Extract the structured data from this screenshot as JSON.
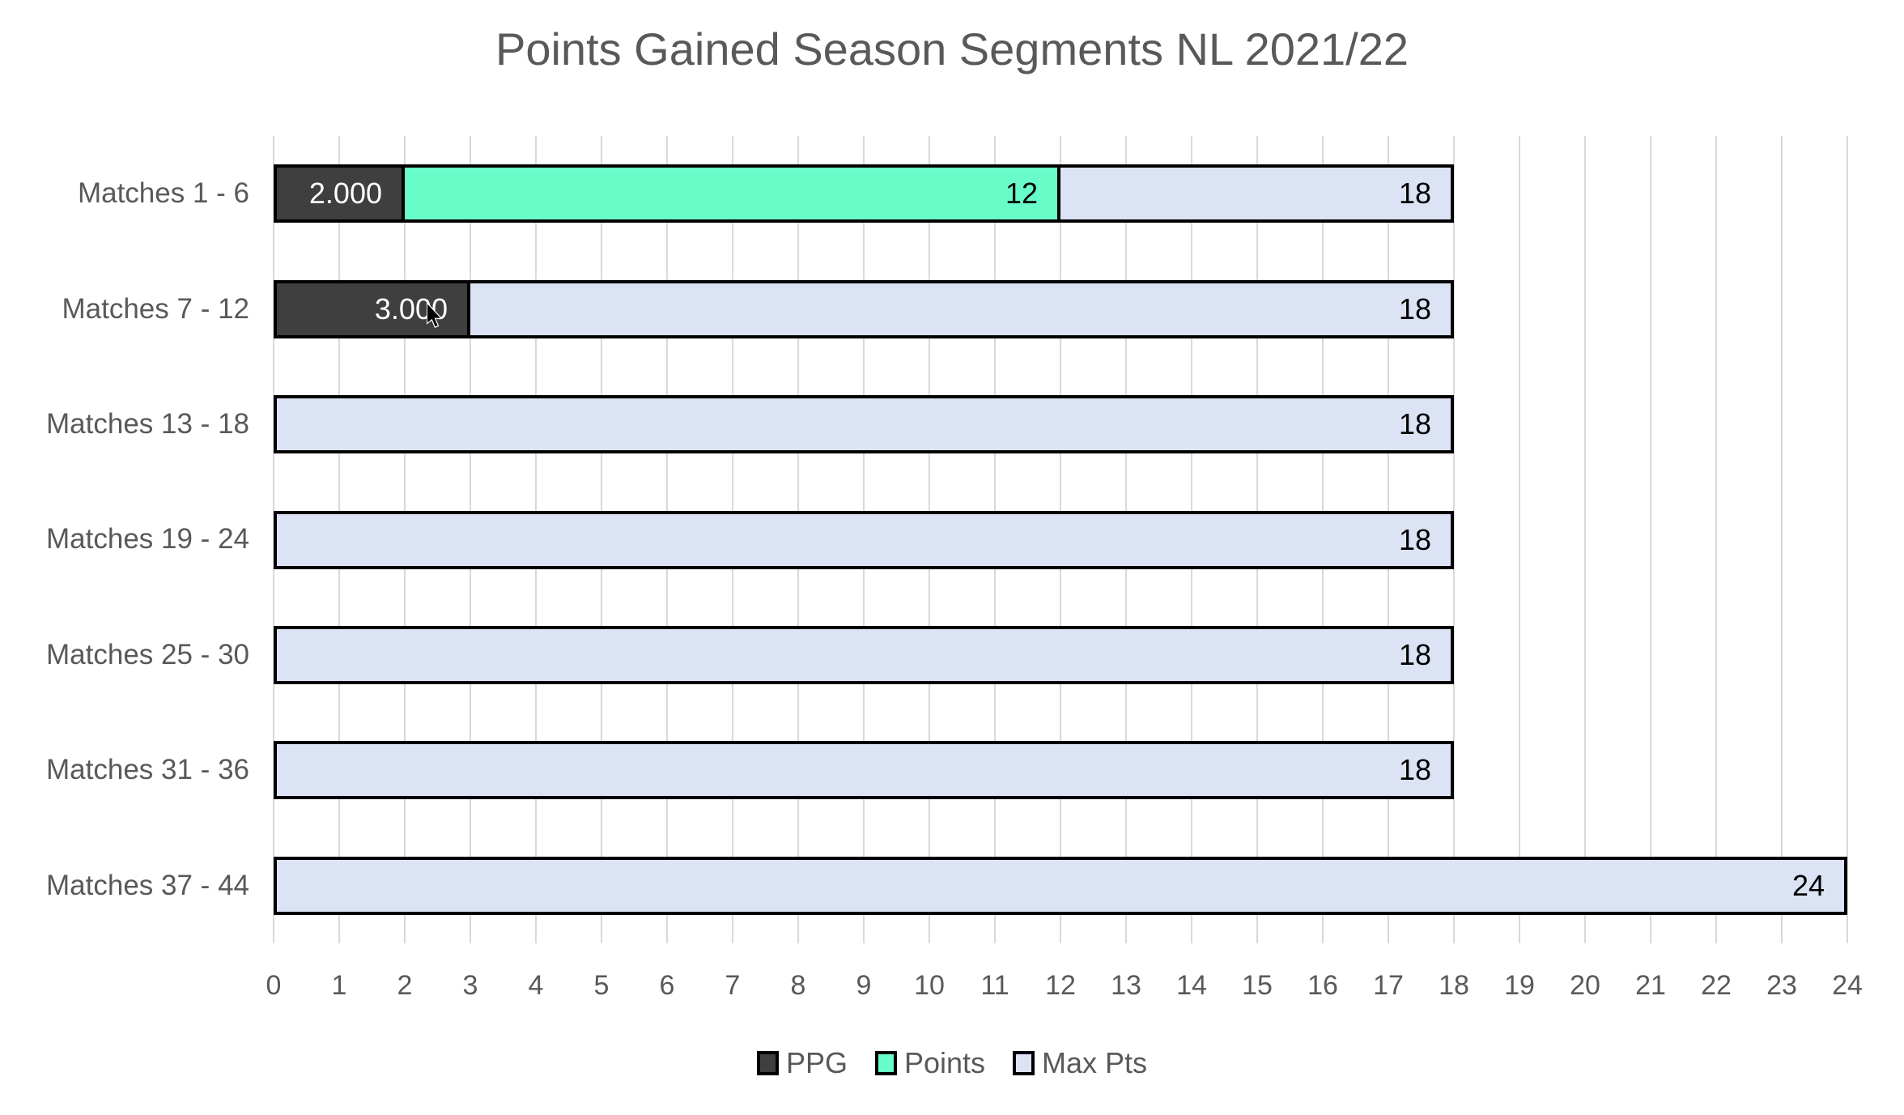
{
  "chart_data": {
    "type": "bar",
    "orientation": "horizontal",
    "title": "Points Gained Season Segments NL 2021/22",
    "categories": [
      "Matches 1 - 6",
      "Matches 7 - 12",
      "Matches 13 - 18",
      "Matches 19 - 24",
      "Matches 25 - 30",
      "Matches 31 - 36",
      "Matches 37 - 44"
    ],
    "series": [
      {
        "name": "PPG",
        "color": "#3f3f3f",
        "pattern": "dots",
        "label_color": "#ffffff",
        "values": [
          2,
          3,
          null,
          null,
          null,
          null,
          null
        ],
        "labels": [
          "2.000",
          "3.000",
          "",
          "",
          "",
          "",
          ""
        ]
      },
      {
        "name": "Points",
        "color": "#68fdc8",
        "pattern": "solid",
        "label_color": "#000000",
        "values": [
          12,
          null,
          null,
          null,
          null,
          null,
          null
        ],
        "labels": [
          "12",
          "",
          "",
          "",
          "",
          "",
          ""
        ]
      },
      {
        "name": "Max Pts",
        "color": "#dbe3f4",
        "pattern": "solid",
        "label_color": "#000000",
        "values": [
          18,
          18,
          18,
          18,
          18,
          18,
          24
        ],
        "labels": [
          "18",
          "18",
          "18",
          "18",
          "18",
          "18",
          "24"
        ]
      }
    ],
    "xlim": [
      0,
      24
    ],
    "xticks": [
      0,
      1,
      2,
      3,
      4,
      5,
      6,
      7,
      8,
      9,
      10,
      11,
      12,
      13,
      14,
      15,
      16,
      17,
      18,
      19,
      20,
      21,
      22,
      23,
      24
    ],
    "grid": "vertical",
    "legend_position": "bottom",
    "colors": {
      "axis_text": "#595959",
      "title_text": "#595959",
      "gridline": "#d9d9d9",
      "bar_border": "#000000",
      "background": "#ffffff"
    }
  }
}
